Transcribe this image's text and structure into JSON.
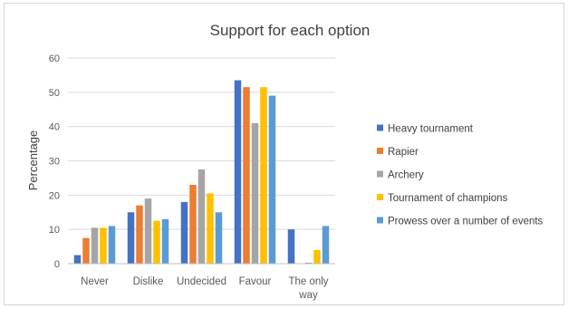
{
  "chart_data": {
    "type": "bar",
    "title": "Support for each option",
    "xlabel": "",
    "ylabel": "Percentage",
    "ylim": [
      0,
      60
    ],
    "yticks": [
      0,
      10,
      20,
      30,
      40,
      50,
      60
    ],
    "grid": true,
    "legend_position": "right",
    "categories": [
      "Never",
      "Dislike",
      "Undecided",
      "Favour",
      "The only way"
    ],
    "series": [
      {
        "name": "Heavy tournament",
        "color": "#4472C4",
        "values": [
          2.5,
          15,
          18,
          53.5,
          10
        ]
      },
      {
        "name": "Rapier",
        "color": "#ED7D31",
        "values": [
          7.5,
          17,
          23,
          51.5,
          0
        ]
      },
      {
        "name": "Archery",
        "color": "#A5A5A5",
        "values": [
          10.5,
          19,
          27.5,
          41,
          0.3
        ]
      },
      {
        "name": "Tournament of champions",
        "color": "#FFC000",
        "values": [
          10.5,
          12.5,
          20.5,
          51.5,
          4
        ]
      },
      {
        "name": "Prowess over a number of events",
        "color": "#5B9BD5",
        "values": [
          11,
          13,
          15,
          49,
          11
        ]
      }
    ]
  }
}
